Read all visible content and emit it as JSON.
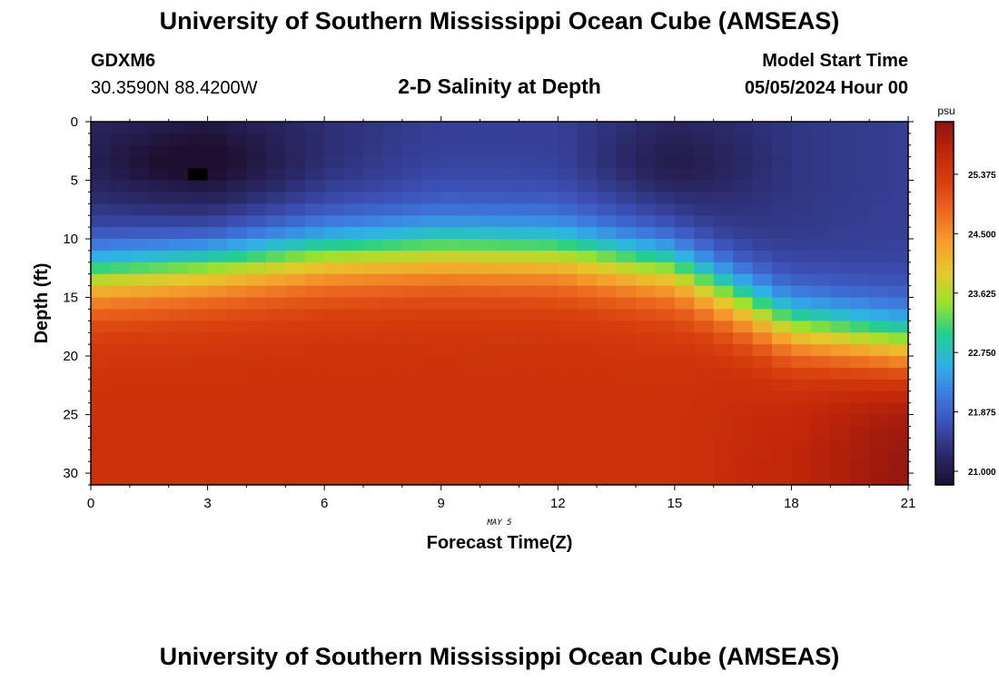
{
  "header": {
    "title": "University of Southern Mississippi Ocean Cube (AMSEAS)",
    "station_id": "GDXM6",
    "coordinates": "30.3590N  88.4200W",
    "plot_title": "2-D Salinity at Depth",
    "model_start_label": "Model Start Time",
    "model_start_value": "05/05/2024 Hour 00"
  },
  "footer": {
    "title": "University of Southern Mississippi Ocean Cube (AMSEAS)"
  },
  "chart_data": {
    "type": "heatmap",
    "title": "2-D Salinity at Depth",
    "xlabel": "Forecast Time(Z)",
    "ylabel": "Depth (ft)",
    "x_date_label": "MAY 5",
    "xlim": [
      0,
      21
    ],
    "ylim": [
      0,
      31
    ],
    "x_ticks": [
      "0",
      "3",
      "6",
      "9",
      "12",
      "15",
      "18",
      "21"
    ],
    "y_ticks": [
      "0",
      "5",
      "10",
      "15",
      "20",
      "25",
      "30"
    ],
    "x_tick_values": [
      0,
      3,
      6,
      9,
      12,
      15,
      18,
      21
    ],
    "y_tick_values": [
      0,
      5,
      10,
      15,
      20,
      25,
      30
    ],
    "colorbar": {
      "unit": "psu",
      "ticks": [
        "25.375",
        "24.500",
        "23.625",
        "22.750",
        "21.875",
        "21.000"
      ],
      "tick_values": [
        25.375,
        24.5,
        23.625,
        22.75,
        21.875,
        21.0
      ],
      "range": [
        20.8,
        26.15
      ]
    },
    "colors": {
      "scale": [
        "#1e0f30",
        "#2a2968",
        "#3c4fb5",
        "#3e7ce0",
        "#2fb2e8",
        "#22d08c",
        "#9ae22c",
        "#e6c82c",
        "#f59e2c",
        "#ec6a20",
        "#d8400e",
        "#c02608",
        "#8c1410"
      ],
      "missing": "#000000",
      "frame": "#000000"
    },
    "grid": {
      "time_step_hours": 0.5,
      "depth_step_ft": 1,
      "columns": 42,
      "rows": 31
    },
    "missing_cell": {
      "time": 2.5,
      "depth": 4
    },
    "profile_summary": [
      {
        "time": 0,
        "halocline_depth_ft": 13.0,
        "surface_psu": 21.2,
        "bottom_psu": 25.5
      },
      {
        "time": 3,
        "halocline_depth_ft": 12.2,
        "surface_psu": 21.0,
        "bottom_psu": 25.5
      },
      {
        "time": 6,
        "halocline_depth_ft": 11.3,
        "surface_psu": 21.3,
        "bottom_psu": 25.5
      },
      {
        "time": 9,
        "halocline_depth_ft": 11.0,
        "surface_psu": 21.5,
        "bottom_psu": 25.5
      },
      {
        "time": 12,
        "halocline_depth_ft": 11.2,
        "surface_psu": 21.5,
        "bottom_psu": 25.5
      },
      {
        "time": 15,
        "halocline_depth_ft": 12.5,
        "surface_psu": 21.2,
        "bottom_psu": 25.5
      },
      {
        "time": 18,
        "halocline_depth_ft": 17.5,
        "surface_psu": 21.4,
        "bottom_psu": 25.7
      },
      {
        "time": 21,
        "halocline_depth_ft": 19.2,
        "surface_psu": 21.5,
        "bottom_psu": 26.1
      }
    ]
  }
}
